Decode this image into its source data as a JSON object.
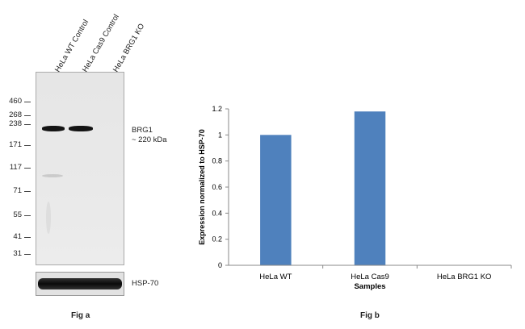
{
  "fig_a": {
    "caption": "Fig a",
    "lanes": [
      "HeLa WT Control",
      "HeLa Cas9 Control",
      "HeLa BRG1 KO"
    ],
    "markers": [
      "460",
      "268",
      "238",
      "171",
      "117",
      "71",
      "55",
      "41",
      "31"
    ],
    "target_label": "BRG1",
    "target_size": "~ 220 kDa",
    "loading_label": "HSP-70"
  },
  "chart_data": {
    "type": "bar",
    "title": "",
    "caption": "Fig b",
    "categories": [
      "HeLa WT",
      "HeLa Cas9",
      "HeLa BRG1 KO"
    ],
    "values": [
      1.0,
      1.18,
      0.0
    ],
    "xlabel": "Samples",
    "ylabel": "Expression  normalized to HSP-70",
    "ylim": [
      0,
      1.2
    ],
    "yticks": [
      0,
      0.2,
      0.4,
      0.6,
      0.8,
      1,
      1.2
    ],
    "bar_color": "#4f81bd",
    "grid": false,
    "legend": "none"
  }
}
